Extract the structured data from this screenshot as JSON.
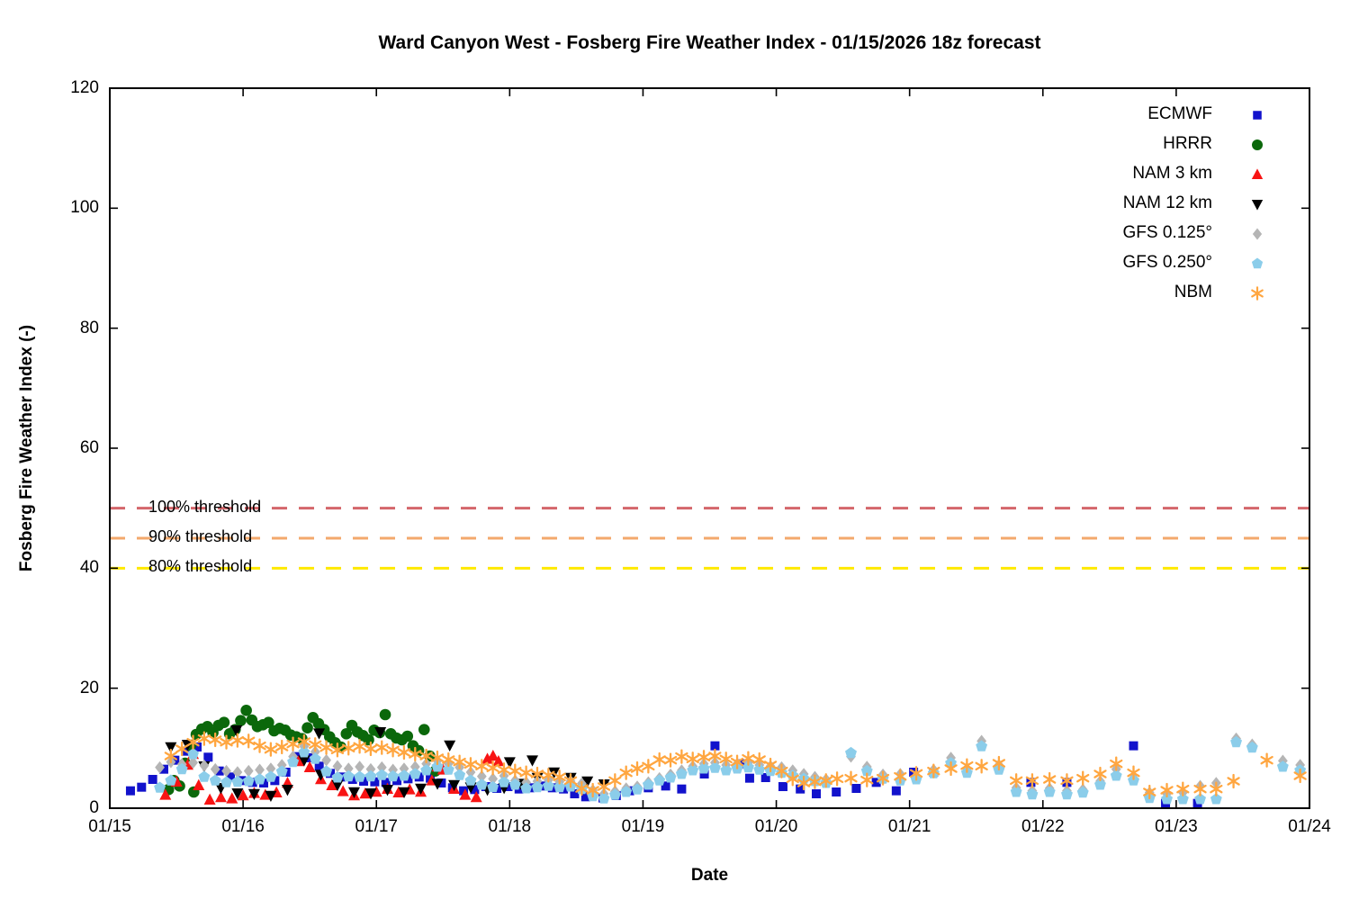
{
  "chart_data": {
    "type": "scatter",
    "title": "Ward Canyon West - Fosberg Fire Weather Index - 01/15/2026 18z forecast",
    "xlabel": "Date",
    "ylabel": "Fosberg Fire Weather Index (-)",
    "x_tick_labels": [
      "01/15",
      "01/16",
      "01/17",
      "01/18",
      "01/19",
      "01/20",
      "01/21",
      "01/22",
      "01/23",
      "01/24"
    ],
    "y_tick_labels": [
      "0",
      "20",
      "40",
      "60",
      "80",
      "100",
      "120"
    ],
    "y_ticks": [
      0,
      20,
      40,
      60,
      80,
      100,
      120
    ],
    "ylim": [
      0,
      120
    ],
    "x_range_days": [
      0,
      9
    ],
    "grid": false,
    "legend_position": "top-right-inside",
    "thresholds": [
      {
        "label": "100% threshold",
        "value": 50,
        "color": "#d4666b"
      },
      {
        "label": "90% threshold",
        "value": 45,
        "color": "#f3a96c"
      },
      {
        "label": "80% threshold",
        "value": 40,
        "color": "#ffe900"
      }
    ],
    "series": [
      {
        "name": "ECMWF",
        "marker": "square",
        "color": "#1212cc",
        "segments": [
          {
            "t0": 0.155,
            "dt": 0.0833,
            "v": [
              2.9,
              3.5,
              4.8,
              6.5,
              8.0,
              9.5,
              10.2,
              8.5,
              6.2,
              5.2,
              4.6,
              4.3,
              4.2,
              4.6,
              6.0,
              8.6,
              8.4,
              7.0,
              5.8,
              5.2,
              4.8,
              4.5,
              4.4,
              4.3,
              4.6,
              4.9,
              5.2,
              5.0,
              4.2,
              3.4,
              2.9,
              3.1,
              3.6,
              3.3,
              3.6,
              3.2,
              3.4,
              3.7,
              3.4,
              3.2,
              2.4,
              1.9
            ]
          }
        ],
        "points": [
          [
            3.7,
            1.7
          ],
          [
            3.8,
            2.1
          ],
          [
            3.9,
            2.9
          ],
          [
            4.04,
            3.4
          ],
          [
            4.17,
            3.7
          ],
          [
            4.29,
            3.2
          ],
          [
            4.46,
            5.7
          ],
          [
            4.54,
            10.4
          ],
          [
            4.75,
            7.4
          ],
          [
            4.8,
            5.0
          ],
          [
            4.92,
            5.1
          ],
          [
            5.05,
            3.6
          ],
          [
            5.18,
            3.2
          ],
          [
            5.3,
            2.4
          ],
          [
            5.45,
            2.7
          ],
          [
            5.6,
            3.3
          ],
          [
            5.75,
            4.3
          ],
          [
            5.9,
            2.9
          ],
          [
            6.03,
            6.0
          ],
          [
            6.18,
            6.0
          ],
          [
            6.91,
            4.3
          ],
          [
            7.18,
            4.3
          ],
          [
            7.68,
            10.4
          ],
          [
            7.92,
            0.8
          ],
          [
            8.16,
            0.8
          ]
        ]
      },
      {
        "name": "HRRR",
        "marker": "circle",
        "color": "#0b680b",
        "segments": [
          {
            "t0": 0.44,
            "dt": 0.0417,
            "v": [
              3.1,
              4.6,
              3.7,
              7.5,
              10.5,
              12.3,
              13.2,
              13.6,
              12.6,
              13.8,
              14.3,
              12.4,
              13.1,
              14.6,
              16.3,
              14.7,
              13.6,
              13.9,
              14.3,
              12.9,
              13.3,
              13.0,
              12.2,
              11.9,
              11.6,
              13.4,
              15.1,
              14.1,
              13.1,
              11.9,
              10.9,
              10.2,
              12.4,
              13.8,
              12.7,
              12.1,
              11.4,
              13.0,
              12.6,
              15.6,
              12.4,
              11.7,
              11.4,
              12.0,
              10.4,
              9.6,
              13.1,
              8.7,
              6.2
            ]
          }
        ],
        "points": [
          [
            0.63,
            2.7
          ]
        ]
      },
      {
        "name": "NAM 3 km",
        "marker": "triangle-up",
        "color": "#f81414",
        "segments": [
          {
            "t0": 0.417,
            "dt": 0.0833,
            "v": [
              2.2,
              4.4,
              7.2,
              3.8,
              1.4,
              1.8,
              1.6,
              2.1,
              2.5,
              2.2,
              2.6,
              4.2,
              7.8,
              6.8,
              4.8,
              3.8,
              2.8,
              2.1,
              2.4,
              2.7,
              3.2,
              2.6,
              3.1,
              2.7,
              4.6,
              6.4,
              3.2,
              2.2,
              1.8,
              8.2,
              7.8
            ]
          }
        ],
        "points": [
          [
            0.625,
            9.0
          ],
          [
            2.458,
            6.9
          ],
          [
            2.875,
            8.7
          ]
        ]
      },
      {
        "name": "NAM 12 km",
        "marker": "triangle-down",
        "color": "#000000",
        "segments": [
          {
            "t0": 0.458,
            "dt": 0.125,
            "v": [
              10.2,
              10.6,
              7.0,
              3.4,
              2.5,
              2.4,
              2.1,
              3.1,
              8.0,
              5.6,
              3.9,
              2.7,
              2.5,
              3.1,
              2.7,
              3.3,
              4.1,
              3.9,
              3.5,
              3.1,
              3.4,
              4.1,
              5.1,
              6.0,
              5.1,
              4.5,
              4.0
            ]
          }
        ],
        "points": [
          [
            0.95,
            13.0
          ],
          [
            1.57,
            12.5
          ],
          [
            2.03,
            12.7
          ],
          [
            2.55,
            10.5
          ],
          [
            3.0,
            7.7
          ],
          [
            3.17,
            8.0
          ]
        ]
      },
      {
        "name": "GFS 0.125°",
        "marker": "diamond",
        "color": "#b5b5b5",
        "segments": [
          {
            "t0": 0.375,
            "dt": 0.0833,
            "v": [
              6.8,
              7.7,
              7.3,
              7.6,
              7.1,
              6.5,
              6.2,
              6.0,
              6.2,
              6.4,
              6.6,
              7.2,
              8.6,
              10.3,
              9.4,
              8.0,
              7.0,
              6.6,
              6.9,
              6.5,
              6.8,
              6.4,
              6.6,
              6.9,
              7.4,
              7.9,
              7.4,
              6.8,
              6.0,
              5.3,
              4.9,
              5.4,
              4.6,
              4.3,
              4.5,
              4.7,
              4.4,
              4.5,
              4.1,
              3.0,
              2.4,
              2.8,
              3.3,
              3.6,
              4.3,
              5.0,
              5.6,
              6.3,
              7.0,
              7.4,
              7.6,
              7.2,
              7.4,
              7.6,
              7.2,
              7.0,
              6.8,
              6.3,
              5.7,
              5.2,
              4.8
            ]
          }
        ],
        "points": [
          [
            5.56,
            8.6
          ],
          [
            5.68,
            6.9
          ],
          [
            5.8,
            5.6
          ],
          [
            5.93,
            5.7
          ],
          [
            6.05,
            5.4
          ],
          [
            6.18,
            6.4
          ],
          [
            6.31,
            8.4
          ],
          [
            6.43,
            6.6
          ],
          [
            6.54,
            11.2
          ],
          [
            6.67,
            7.2
          ],
          [
            6.8,
            3.4
          ],
          [
            6.92,
            2.9
          ],
          [
            7.05,
            3.3
          ],
          [
            7.18,
            2.9
          ],
          [
            7.3,
            3.1
          ],
          [
            7.43,
            4.5
          ],
          [
            7.55,
            6.5
          ],
          [
            7.68,
            5.0
          ],
          [
            7.8,
            2.6
          ],
          [
            7.93,
            2.4
          ],
          [
            8.05,
            2.6
          ],
          [
            8.18,
            3.7
          ],
          [
            8.3,
            4.2
          ],
          [
            8.45,
            11.6
          ],
          [
            8.57,
            10.6
          ],
          [
            8.8,
            7.9
          ],
          [
            8.93,
            7.2
          ]
        ]
      },
      {
        "name": "GFS 0.250°",
        "marker": "pentagon",
        "color": "#8bcdea",
        "segments": [
          {
            "t0": 0.375,
            "dt": 0.0833,
            "v": [
              3.4,
              4.6,
              6.5,
              9.0,
              5.2,
              4.6,
              4.3,
              4.4,
              4.5,
              4.8,
              5.2,
              6.1,
              7.7,
              9.3,
              8.2,
              6.1,
              5.1,
              5.3,
              5.2,
              5.3,
              5.5,
              5.3,
              5.4,
              5.7,
              6.3,
              6.9,
              6.4,
              5.5,
              4.6,
              3.9,
              3.5,
              4.3,
              3.9,
              3.3,
              3.5,
              3.7,
              3.5,
              3.6,
              3.2,
              2.0,
              1.6,
              2.2,
              2.7,
              3.1,
              3.9,
              4.6,
              5.1,
              5.7,
              6.3,
              6.6,
              6.7,
              6.3,
              6.6,
              6.8,
              6.4,
              6.2,
              5.9,
              5.4,
              4.9,
              4.5,
              4.2
            ]
          }
        ],
        "points": [
          [
            5.56,
            9.2
          ],
          [
            5.68,
            6.2
          ],
          [
            5.8,
            4.9
          ],
          [
            5.93,
            4.6
          ],
          [
            6.05,
            4.8
          ],
          [
            6.18,
            5.8
          ],
          [
            6.31,
            7.5
          ],
          [
            6.43,
            5.9
          ],
          [
            6.54,
            10.3
          ],
          [
            6.67,
            6.4
          ],
          [
            6.8,
            2.7
          ],
          [
            6.92,
            2.3
          ],
          [
            7.05,
            2.7
          ],
          [
            7.18,
            2.3
          ],
          [
            7.3,
            2.6
          ],
          [
            7.43,
            3.9
          ],
          [
            7.55,
            5.4
          ],
          [
            7.68,
            4.6
          ],
          [
            7.8,
            1.7
          ],
          [
            7.93,
            1.5
          ],
          [
            8.05,
            1.5
          ],
          [
            8.18,
            1.5
          ],
          [
            8.3,
            1.5
          ],
          [
            8.45,
            11.0
          ],
          [
            8.57,
            10.1
          ],
          [
            8.8,
            6.9
          ],
          [
            8.93,
            6.3
          ]
        ]
      },
      {
        "name": "NBM",
        "marker": "asterisk",
        "color": "#ffa640",
        "segments": [
          {
            "t0": 0.458,
            "dt": 0.0833,
            "v": [
              8.7,
              9.9,
              11.0,
              11.6,
              11.4,
              11.0,
              11.3,
              11.2,
              10.4,
              9.8,
              10.2,
              10.7,
              11.1,
              10.6,
              10.1,
              9.7,
              10.0,
              10.3,
              9.9,
              10.1,
              9.7,
              9.3,
              9.0,
              8.7,
              8.4,
              8.1,
              7.7,
              7.3,
              7.0,
              6.7,
              6.4,
              6.2,
              5.9,
              5.7,
              5.5,
              5.2,
              4.6,
              3.3,
              3.0,
              3.6,
              4.6,
              5.9,
              6.6,
              7.0,
              8.1,
              8.0,
              8.6,
              8.2,
              8.5,
              8.7,
              8.2,
              7.7,
              8.3,
              8.1,
              7.2,
              6.2,
              4.9,
              4.2,
              4.4,
              4.6,
              4.9
            ]
          }
        ],
        "points": [
          [
            5.56,
            5.0
          ],
          [
            5.68,
            4.7
          ],
          [
            5.8,
            5.0
          ],
          [
            5.93,
            5.3
          ],
          [
            6.05,
            5.8
          ],
          [
            6.18,
            6.2
          ],
          [
            6.31,
            6.6
          ],
          [
            6.43,
            7.1
          ],
          [
            6.54,
            7.0
          ],
          [
            6.67,
            7.5
          ],
          [
            6.8,
            4.6
          ],
          [
            6.92,
            4.6
          ],
          [
            7.05,
            4.8
          ],
          [
            7.18,
            4.6
          ],
          [
            7.3,
            5.0
          ],
          [
            7.43,
            5.7
          ],
          [
            7.55,
            7.4
          ],
          [
            7.68,
            5.9
          ],
          [
            7.8,
            2.7
          ],
          [
            7.93,
            3.0
          ],
          [
            8.05,
            3.2
          ],
          [
            8.18,
            3.2
          ],
          [
            8.3,
            3.2
          ],
          [
            8.43,
            4.5
          ],
          [
            8.68,
            8.0
          ],
          [
            8.93,
            5.4
          ]
        ]
      }
    ]
  }
}
